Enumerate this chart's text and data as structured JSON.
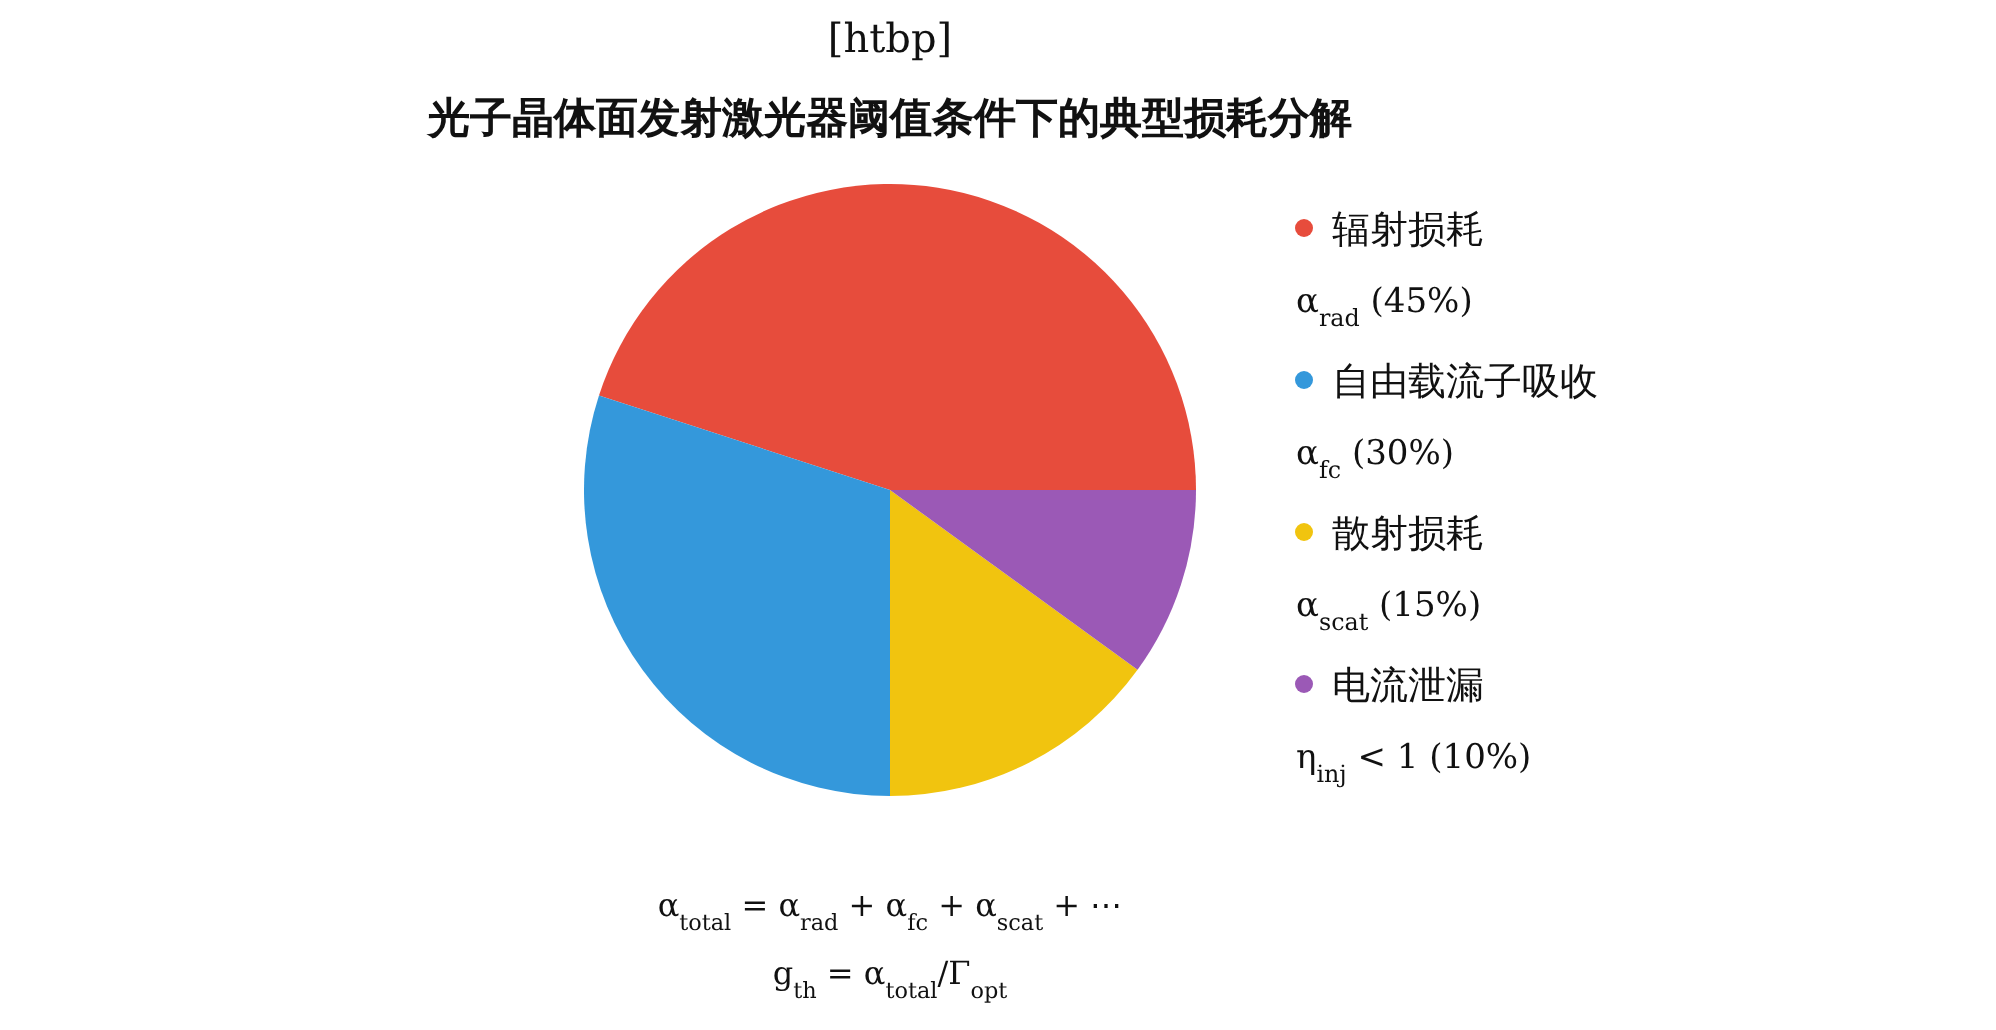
{
  "chart_data": {
    "type": "pie",
    "title": "光子晶体面发射激光器阈值条件下的典型损耗分解",
    "categories": [
      "辐射损耗",
      "自由载流子吸收",
      "散射损耗",
      "电流泄漏"
    ],
    "values": [
      45,
      30,
      15,
      10
    ],
    "colors": [
      "#e74c3c",
      "#3498db",
      "#f1c40f",
      "#9b59b6"
    ],
    "value_labels": [
      "α$_{rad}$ (45%)",
      "α$_{fc}$ (30%)",
      "α$_{scat}$ (15%)",
      "η$_{inj}$ < 1 (10%)"
    ],
    "legend": "right",
    "annotations": [
      "[htbp]",
      "α$_{total}$ = α$_{rad}$ + α$_{fc}$ + α$_{scat}$ + ⋯",
      "g$_{th}$ = α$_{total}$/Γ$_{opt}$"
    ]
  }
}
